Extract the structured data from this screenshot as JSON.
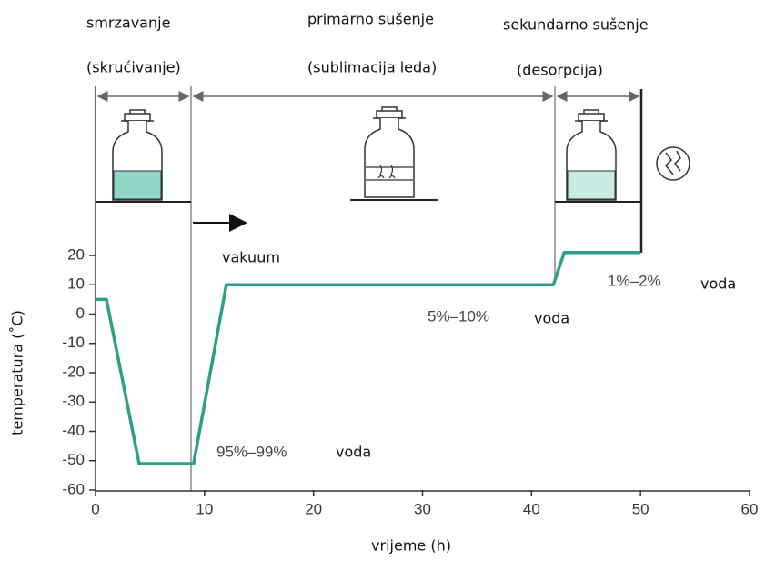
{
  "chart_data": {
    "type": "line",
    "annotations": [
      "smrzavanje",
      "(skrućivanje)",
      "primarno sušenje",
      "(sublimacija leda)",
      "sekundarno sušenje",
      "(desorpcija)",
      "vakuum",
      "95%–99%",
      "voda",
      "5%–10%",
      "voda",
      "1%–2%",
      "voda"
    ],
    "xlabel": "vrijeme (h)",
    "ylabel": "temperatura (˚C)",
    "x": [
      0,
      1,
      4,
      9,
      12,
      42,
      43,
      50
    ],
    "values": [
      5,
      5,
      -51,
      -51,
      10,
      10,
      21,
      21
    ],
    "color": "#2f9e86",
    "xlim": [
      0,
      60
    ],
    "xticks": [
      0,
      10,
      20,
      30,
      40,
      50,
      60
    ],
    "ylim": [
      -60,
      20
    ],
    "yticks": [
      -60,
      -50,
      -40,
      -30,
      -20,
      -10,
      0,
      10,
      20
    ]
  }
}
